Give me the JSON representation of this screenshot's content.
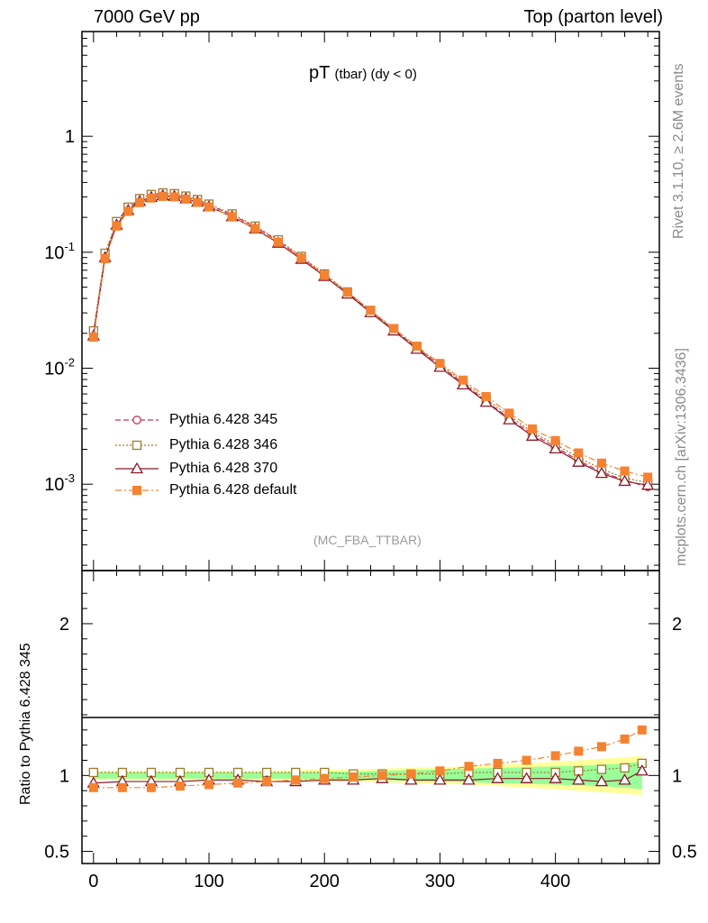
{
  "header": {
    "left": "7000 GeV pp",
    "right": "Top (parton level)"
  },
  "side_labels": {
    "rivet": "Rivet 3.1.10, ≥ 2.6M events",
    "mcplots": "mcplots.cern.ch [arXiv:1306.3436]"
  },
  "plot_title": {
    "main": "pT",
    "sub": "(tbar) (dy < 0)"
  },
  "analysis_label": "(MC_FBA_TTBAR)",
  "ratio_ylabel": "Ratio to Pythia 6.428 345",
  "legend": [
    {
      "label": "Pythia 6.428 345",
      "color": "#cc3355",
      "marker": "open-circle",
      "line": "dashed"
    },
    {
      "label": "Pythia 6.428 346",
      "color": "#a07a30",
      "marker": "open-square",
      "line": "dotted"
    },
    {
      "label": "Pythia 6.428 370",
      "color": "#8b1a2b",
      "marker": "open-triangle",
      "line": "solid"
    },
    {
      "label": "Pythia 6.428 default",
      "color": "#f58231",
      "marker": "filled-square",
      "line": "dashdot"
    }
  ],
  "chart_data": {
    "type": "line",
    "x_unit": "GeV",
    "main": {
      "yscale": "log",
      "ylim": [
        0.00018,
        8
      ],
      "xlim": [
        -10,
        490
      ],
      "ytick_labels": [
        "10^-3",
        "10^-2",
        "10^-1",
        "1"
      ],
      "x": [
        0,
        10,
        20,
        30,
        40,
        50,
        60,
        70,
        80,
        90,
        100,
        120,
        140,
        160,
        180,
        200,
        220,
        240,
        260,
        280,
        300,
        320,
        340,
        360,
        380,
        400,
        420,
        440,
        460,
        480
      ],
      "series": [
        {
          "name": "Pythia 6.428 345",
          "values": [
            0.02,
            0.095,
            0.18,
            0.24,
            0.285,
            0.31,
            0.32,
            0.315,
            0.3,
            0.28,
            0.255,
            0.21,
            0.165,
            0.125,
            0.09,
            0.064,
            0.045,
            0.031,
            0.0215,
            0.015,
            0.0105,
            0.0074,
            0.0052,
            0.0037,
            0.0027,
            0.0021,
            0.0016,
            0.00128,
            0.00108,
            0.00095
          ]
        },
        {
          "name": "Pythia 6.428 346",
          "values": [
            0.021,
            0.098,
            0.184,
            0.245,
            0.29,
            0.315,
            0.325,
            0.32,
            0.305,
            0.285,
            0.26,
            0.214,
            0.168,
            0.128,
            0.092,
            0.065,
            0.0455,
            0.0315,
            0.0218,
            0.0152,
            0.0107,
            0.0076,
            0.0054,
            0.0039,
            0.0028,
            0.0022,
            0.0017,
            0.00135,
            0.00113,
            0.00103
          ]
        },
        {
          "name": "Pythia 6.428 370",
          "values": [
            0.019,
            0.09,
            0.172,
            0.23,
            0.275,
            0.298,
            0.308,
            0.304,
            0.29,
            0.271,
            0.247,
            0.203,
            0.159,
            0.12,
            0.087,
            0.062,
            0.0437,
            0.0302,
            0.021,
            0.0146,
            0.0102,
            0.0072,
            0.0051,
            0.0036,
            0.0026,
            0.00202,
            0.00155,
            0.00124,
            0.00106,
            0.00098
          ]
        },
        {
          "name": "Pythia 6.428 default",
          "values": [
            0.0185,
            0.088,
            0.168,
            0.225,
            0.268,
            0.293,
            0.303,
            0.3,
            0.287,
            0.269,
            0.246,
            0.203,
            0.16,
            0.122,
            0.089,
            0.0635,
            0.0452,
            0.0316,
            0.022,
            0.0155,
            0.011,
            0.0079,
            0.0057,
            0.0041,
            0.003,
            0.00238,
            0.00186,
            0.00152,
            0.0013,
            0.00115
          ]
        }
      ]
    },
    "ratio": {
      "ylabel": "Ratio to Pythia 6.428 345",
      "ylim": [
        0.42,
        2.35
      ],
      "ytick_labels": [
        "0.5",
        "1",
        "2"
      ],
      "xticks": [
        0,
        100,
        200,
        300,
        400
      ],
      "x": [
        0,
        25,
        50,
        75,
        100,
        125,
        150,
        175,
        200,
        225,
        250,
        275,
        300,
        325,
        350,
        375,
        400,
        420,
        440,
        460,
        475
      ],
      "band_green_halfwidth": [
        0.02,
        0.02,
        0.02,
        0.02,
        0.02,
        0.02,
        0.02,
        0.02,
        0.025,
        0.025,
        0.03,
        0.035,
        0.04,
        0.045,
        0.05,
        0.055,
        0.06,
        0.065,
        0.07,
        0.08,
        0.09
      ],
      "band_yellow_halfwidth": [
        0.03,
        0.03,
        0.03,
        0.03,
        0.03,
        0.03,
        0.03,
        0.035,
        0.04,
        0.04,
        0.045,
        0.05,
        0.055,
        0.06,
        0.07,
        0.08,
        0.09,
        0.1,
        0.11,
        0.12,
        0.13
      ],
      "series": [
        {
          "name": "Pythia 6.428 346",
          "values": [
            1.02,
            1.02,
            1.02,
            1.02,
            1.02,
            1.02,
            1.02,
            1.02,
            1.02,
            1.01,
            1.01,
            1.01,
            1.01,
            1.02,
            1.02,
            1.02,
            1.02,
            1.03,
            1.04,
            1.05,
            1.08
          ]
        },
        {
          "name": "Pythia 6.428 370",
          "values": [
            0.95,
            0.96,
            0.96,
            0.96,
            0.97,
            0.97,
            0.96,
            0.96,
            0.97,
            0.97,
            0.98,
            0.97,
            0.97,
            0.97,
            0.98,
            0.98,
            0.98,
            0.97,
            0.96,
            0.97,
            1.03
          ]
        },
        {
          "name": "Pythia 6.428 default",
          "values": [
            0.92,
            0.92,
            0.92,
            0.93,
            0.94,
            0.95,
            0.96,
            0.97,
            0.98,
            0.99,
            1.0,
            1.01,
            1.03,
            1.06,
            1.08,
            1.1,
            1.13,
            1.16,
            1.19,
            1.24,
            1.3
          ]
        }
      ]
    }
  }
}
